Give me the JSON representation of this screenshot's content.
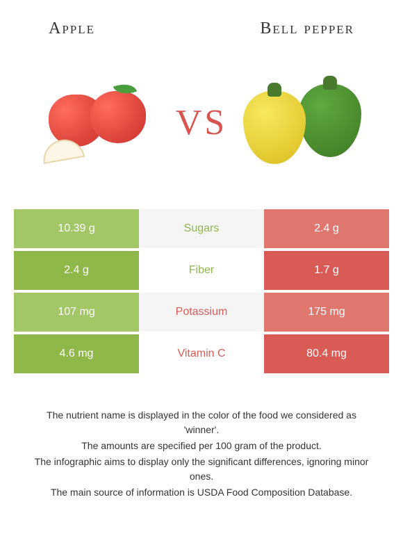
{
  "leftFood": {
    "name": "Apple",
    "color": "#8fb749"
  },
  "rightFood": {
    "name": "Bell pepper",
    "color": "#d95b55"
  },
  "vsLabel": "VS",
  "table": {
    "leftLightColor": "#a3c667",
    "leftDarkColor": "#8fb749",
    "rightLightColor": "#df776f",
    "rightDarkColor": "#d95b55",
    "midBgLight": "#ffffff",
    "midBgDark": "#f5f5f5",
    "rows": [
      {
        "label": "Sugars",
        "left": "10.39 g",
        "right": "2.4 g",
        "winner": "left"
      },
      {
        "label": "Fiber",
        "left": "2.4 g",
        "right": "1.7 g",
        "winner": "left"
      },
      {
        "label": "Potassium",
        "left": "107 mg",
        "right": "175 mg",
        "winner": "right"
      },
      {
        "label": "Vitamin C",
        "left": "4.6 mg",
        "right": "80.4 mg",
        "winner": "right"
      }
    ]
  },
  "footer": [
    "The nutrient name is displayed in the color of the food we considered as 'winner'.",
    "The amounts are specified per 100 gram of the product.",
    "The infographic aims to display only the significant differences, ignoring minor ones.",
    "The main source of information is USDA Food Composition Database."
  ]
}
